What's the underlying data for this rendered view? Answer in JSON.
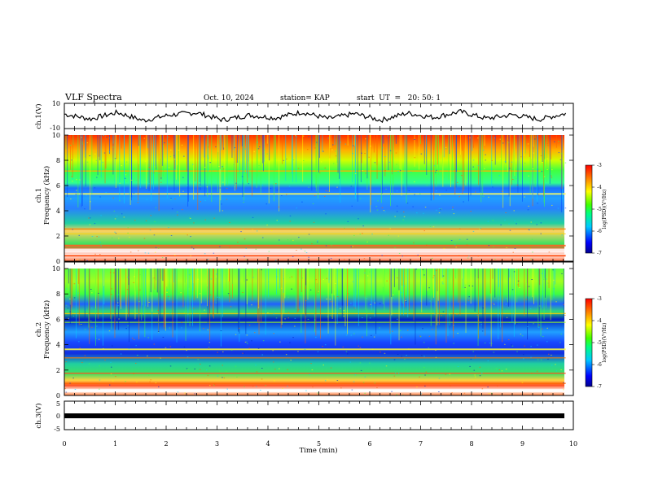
{
  "header": {
    "title": "VLF Spectra",
    "date": "Oct. 10, 2024",
    "station": "station= KAP",
    "start_time": "start  UT  =   20: 50: 1"
  },
  "colors": {
    "axis": "#000000",
    "trace": "#000000",
    "background": "#ffffff"
  },
  "chart_data": [
    {
      "type": "line",
      "id": "ch1-waveform",
      "ylabel": "ch.1(V)",
      "ylim": [
        -10,
        10
      ],
      "yticks": [
        "10",
        "-10"
      ],
      "xlim": [
        0,
        10
      ],
      "description_series": "time-domain voltage trace, fluctuating roughly between -5 and 5 V",
      "series": [
        {
          "name": "ch.1",
          "values": [
            2.1,
            -3.4,
            4.0,
            -5.2,
            1.2,
            3.8,
            -4.6,
            0.9,
            -2.2,
            4.4,
            -3.1,
            2.6,
            -4.8,
            3.3,
            -1.7,
            4.9,
            -2.9,
            1.4,
            -3.9,
            2.8
          ]
        }
      ]
    },
    {
      "type": "heatmap",
      "id": "ch1-spectrogram",
      "ylabel_top": "ch.1",
      "ylabel": "Frequency (kHz)",
      "ylim": [
        0,
        10
      ],
      "yticks": [
        "0",
        "2",
        "4",
        "6",
        "8",
        "10"
      ],
      "xlim": [
        0,
        10
      ],
      "colorbar": {
        "label": "log(PSD)(V²/Hz)",
        "range": [
          -7,
          -3
        ],
        "ticks": [
          "-3",
          "-4",
          "-5",
          "-6",
          "-7"
        ]
      }
    },
    {
      "type": "heatmap",
      "id": "ch2-spectrogram",
      "ylabel_top": "ch.2",
      "ylabel": "Frequency (kHz)",
      "ylim": [
        0,
        10
      ],
      "yticks": [
        "0",
        "2",
        "4",
        "6",
        "8",
        "10"
      ],
      "xlim": [
        0,
        10
      ],
      "colorbar": {
        "label": "log(PSD)(V²/Hz)",
        "range": [
          -7,
          -3
        ],
        "ticks": [
          "-3",
          "-4",
          "-5",
          "-6",
          "-7"
        ]
      }
    },
    {
      "type": "line",
      "id": "ch3-signal",
      "ylabel": "ch.3(V)",
      "ylim": [
        -5,
        5
      ],
      "yticks": [
        "5",
        "0",
        "-5"
      ],
      "xlim": [
        0,
        10
      ],
      "xlabel": "Time (min)",
      "xticks": [
        "0",
        "1",
        "2",
        "3",
        "4",
        "5",
        "6",
        "7",
        "8",
        "9",
        "10"
      ],
      "series": [
        {
          "name": "ch.3",
          "values": [
            0,
            0,
            0,
            0,
            0,
            0,
            0,
            0,
            0,
            0,
            0
          ]
        }
      ]
    }
  ]
}
